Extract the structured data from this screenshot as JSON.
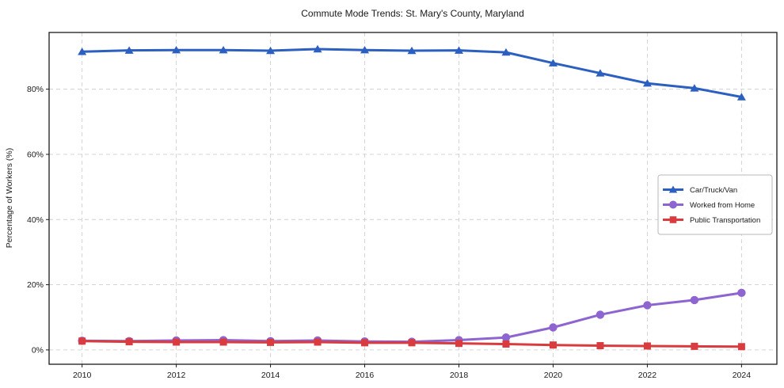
{
  "page": {
    "background": "#ffffff",
    "frame_color": "#1a1a1a",
    "grid_color": "#cfcfcf"
  },
  "chart_data": {
    "type": "line",
    "title": "Commute Mode Trends: St. Mary's County, Maryland",
    "xlabel": "",
    "ylabel": "Percentage of Workers (%)",
    "x": [
      2010,
      2011,
      2012,
      2013,
      2014,
      2015,
      2016,
      2017,
      2018,
      2019,
      2020,
      2021,
      2022,
      2023,
      2024
    ],
    "xticks": [
      2010,
      2012,
      2014,
      2016,
      2018,
      2020,
      2022,
      2024
    ],
    "yticks": [
      0,
      20,
      40,
      60,
      80
    ],
    "ytick_suffix": "%",
    "xlim": [
      2009.3,
      2024.75
    ],
    "ylim": [
      -4.4,
      97.4
    ],
    "grid": true,
    "legend_position": "center-right",
    "series": [
      {
        "name": "Car/Truck/Van",
        "color": "#2b5fc0",
        "marker": "triangle",
        "values": [
          91.5,
          91.9,
          92.0,
          92.0,
          91.8,
          92.3,
          92.0,
          91.8,
          91.9,
          91.3,
          88.0,
          84.9,
          81.8,
          80.3,
          77.6
        ]
      },
      {
        "name": "Worked from Home",
        "color": "#8d64d0",
        "marker": "circle",
        "values": [
          2.8,
          2.7,
          2.9,
          3.0,
          2.7,
          2.9,
          2.6,
          2.5,
          3.0,
          3.8,
          6.9,
          10.8,
          13.7,
          15.3,
          17.5
        ]
      },
      {
        "name": "Public Transportation",
        "color": "#d93b3e",
        "marker": "square",
        "values": [
          2.7,
          2.5,
          2.4,
          2.4,
          2.3,
          2.4,
          2.2,
          2.2,
          2.0,
          1.8,
          1.5,
          1.3,
          1.2,
          1.1,
          1.0
        ]
      }
    ]
  }
}
